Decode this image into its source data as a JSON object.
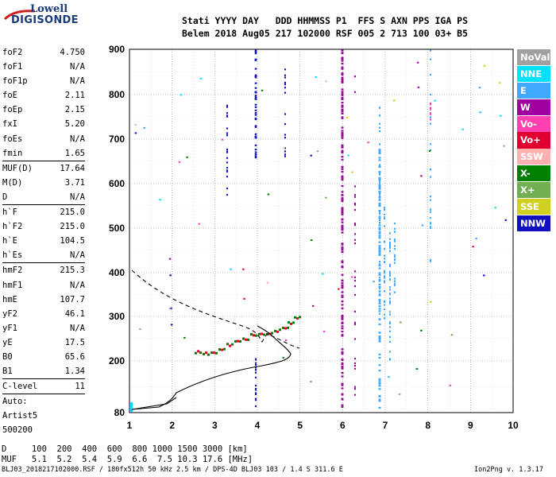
{
  "logo": {
    "line1": "Lowell",
    "line2": "DIGISONDE"
  },
  "header": {
    "row1": "Stati YYYY DAY   DDD HHMMSS P1  FFS S AXN PPS IGA PS",
    "row2": "Belem 2018 Aug05 217 102000 RSF 005 2 713 100 03+ B5"
  },
  "params": [
    {
      "name": "foF2",
      "value": "4.750"
    },
    {
      "name": "foF1",
      "value": "N/A"
    },
    {
      "name": "foF1p",
      "value": "N/A"
    },
    {
      "name": "foE",
      "value": "2.11"
    },
    {
      "name": "foEp",
      "value": "2.15"
    },
    {
      "name": "fxI",
      "value": "5.20"
    },
    {
      "name": "foEs",
      "value": "N/A"
    },
    {
      "name": "fmin",
      "value": "1.65"
    },
    {
      "name": "MUF(D)",
      "value": "17.64"
    },
    {
      "name": "M(D)",
      "value": "3.71"
    },
    {
      "name": "D",
      "value": "N/A"
    },
    {
      "name": "h`F",
      "value": "215.0"
    },
    {
      "name": "h`F2",
      "value": "215.0"
    },
    {
      "name": "h`E",
      "value": "104.5"
    },
    {
      "name": "h`Es",
      "value": "N/A"
    },
    {
      "name": "hmF2",
      "value": "215.3"
    },
    {
      "name": "hmF1",
      "value": "N/A"
    },
    {
      "name": "hmE",
      "value": "107.7"
    },
    {
      "name": "yF2",
      "value": "46.1"
    },
    {
      "name": "yF1",
      "value": "N/A"
    },
    {
      "name": "yE",
      "value": "17.5"
    },
    {
      "name": "B0",
      "value": "65.6"
    },
    {
      "name": "B1",
      "value": "1.34"
    },
    {
      "name": "C-level",
      "value": "11"
    }
  ],
  "autoscale": {
    "l1": "Auto:",
    "l2": "Artist5",
    "l3": "500200"
  },
  "legend": [
    {
      "label": "NoVal",
      "color": "#a0a0a0"
    },
    {
      "label": "NNE",
      "color": "#00e0ff"
    },
    {
      "label": "E",
      "color": "#40a8ff"
    },
    {
      "label": "W",
      "color": "#a000a0"
    },
    {
      "label": "Vo-",
      "color": "#ff40b0"
    },
    {
      "label": "Vo+",
      "color": "#e00030"
    },
    {
      "label": "SSW",
      "color": "#ffb0b0"
    },
    {
      "label": "X-",
      "color": "#008000"
    },
    {
      "label": "X+",
      "color": "#70b050"
    },
    {
      "label": "SSE",
      "color": "#d0d020"
    },
    {
      "label": "NNW",
      "color": "#1010c0"
    }
  ],
  "axes": {
    "x_ticks": [
      "1",
      "2",
      "3",
      "4",
      "5",
      "6",
      "7",
      "8",
      "9",
      "10"
    ],
    "y_ticks": [
      "900",
      "800",
      "700",
      "600",
      "500",
      "400",
      "300",
      "200",
      "80"
    ]
  },
  "footer": {
    "row1": "D     100  200  400  600  800 1000 1500 3000 [km]",
    "row2": "MUF   5.1  5.2  5.4  5.9  6.6  7.5 10.3 17.6 [MHz]",
    "left": "BLJ03_2018217102000.RSF / 180fx512h 50 kHz 2.5 km / DPS-4D BLJ03 103 / 1.4 S 311.6 E",
    "right": "Ion2Png v. 1.3.17"
  }
}
